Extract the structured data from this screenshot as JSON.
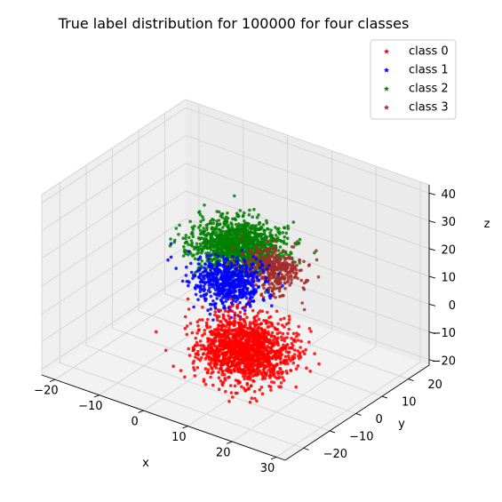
{
  "chart_data": {
    "type": "scatter",
    "projection": "3d",
    "title": "True label distribution for 100000 for four classes",
    "xlabel": "x",
    "ylabel": "y",
    "zlabel": "z",
    "xticks": [
      -20,
      -10,
      0,
      10,
      20,
      30
    ],
    "yticks": [
      -20,
      -10,
      0,
      10,
      20
    ],
    "zticks": [
      -20,
      -10,
      0,
      10,
      20,
      30,
      40
    ],
    "xlim": [
      -23,
      32
    ],
    "ylim": [
      -27,
      28
    ],
    "zlim": [
      -22,
      43
    ],
    "grid": true,
    "legend_position": "top-right",
    "marker": "star",
    "series": [
      {
        "name": "class 0",
        "color": "#ff0000",
        "center": [
          10,
          -5,
          -8
        ],
        "spread": [
          4.5,
          4.5,
          4.5
        ]
      },
      {
        "name": "class 1",
        "color": "#0000ff",
        "center": [
          2,
          2,
          7
        ],
        "spread": [
          3.5,
          3.5,
          3
        ]
      },
      {
        "name": "class 2",
        "color": "#008000",
        "center": [
          2,
          6,
          18
        ],
        "spread": [
          4.5,
          4.5,
          3
        ]
      },
      {
        "name": "class 3",
        "color": "#a52a2a",
        "center": [
          8,
          10,
          10
        ],
        "spread": [
          3,
          3,
          3
        ]
      }
    ]
  }
}
